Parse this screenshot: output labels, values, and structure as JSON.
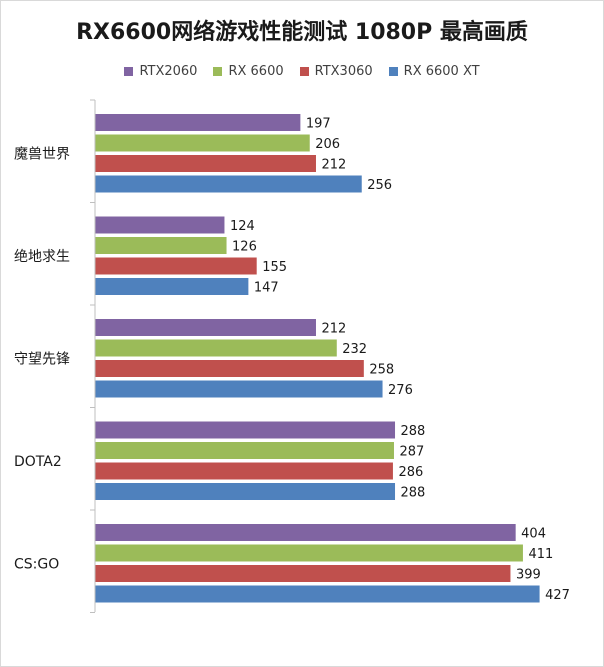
{
  "chart_data": {
    "type": "bar",
    "orientation": "horizontal",
    "title": "RX6600网络游戏性能测试 1080P 最高画质",
    "categories": [
      "魔兽世界",
      "绝地求生",
      "守望先锋",
      "DOTA2",
      "CS:GO"
    ],
    "series": [
      {
        "name": "RTX2060",
        "color": "#8064a2",
        "values": [
          197,
          124,
          212,
          288,
          404
        ]
      },
      {
        "name": "RX 6600",
        "color": "#9bbb59",
        "values": [
          206,
          126,
          232,
          287,
          411
        ]
      },
      {
        "name": "RTX3060",
        "color": "#c0504d",
        "values": [
          212,
          155,
          258,
          286,
          399
        ]
      },
      {
        "name": "RX 6600 XT",
        "color": "#4f81bd",
        "values": [
          256,
          147,
          276,
          288,
          427
        ]
      }
    ],
    "xlim": [
      0,
      450
    ],
    "grid": false,
    "legend": "top",
    "data_labels": true
  }
}
